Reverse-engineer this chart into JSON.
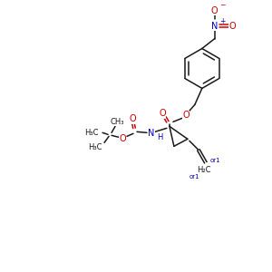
{
  "bg_color": "#ffffff",
  "bond_color": "#1a1a1a",
  "oxygen_color": "#cc0000",
  "nitrogen_color": "#0000bb",
  "figsize": [
    3.0,
    3.0
  ],
  "dpi": 100,
  "xlim": [
    0,
    300
  ],
  "ylim": [
    0,
    300
  ]
}
